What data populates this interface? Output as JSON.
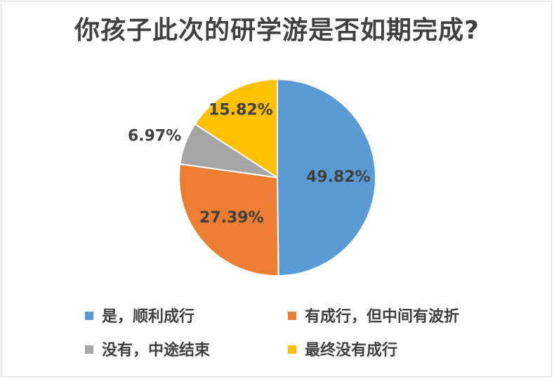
{
  "chart_data": {
    "type": "pie",
    "title": "你孩子此次的研学游是否如期完成?",
    "slices": [
      {
        "label": "是，顺利成行",
        "value": 49.82,
        "display": "49.82%",
        "color": "#5b9bd5"
      },
      {
        "label": "有成行，但中间有波折",
        "value": 27.39,
        "display": "27.39%",
        "color": "#ed7d31"
      },
      {
        "label": "没有，中途结束",
        "value": 6.97,
        "display": "6.97%",
        "color": "#a5a5a5"
      },
      {
        "label": "最终没有成行",
        "value": 15.82,
        "display": "15.82%",
        "color": "#ffc000"
      }
    ],
    "start_angle": "12 o'clock",
    "direction": "clockwise",
    "legend_position": "bottom"
  }
}
